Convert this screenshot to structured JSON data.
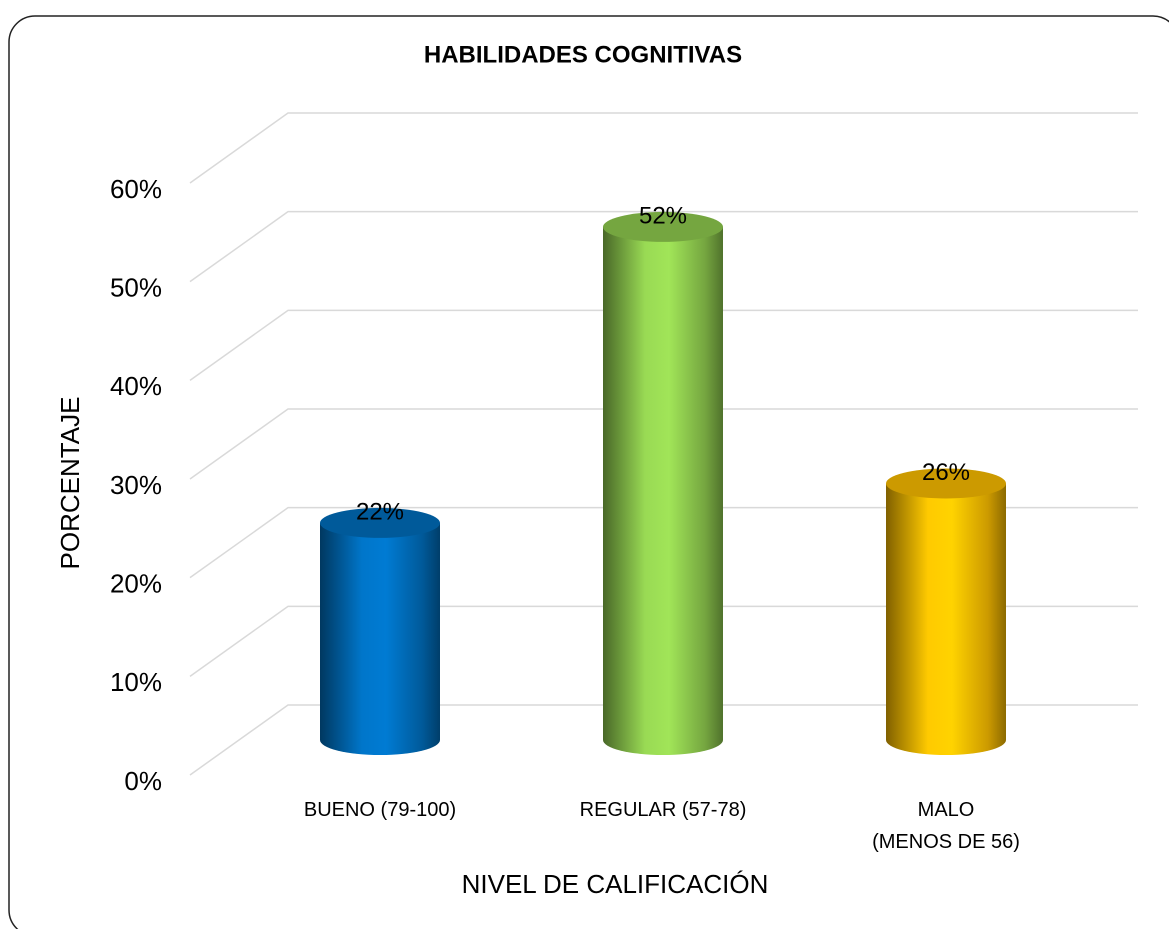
{
  "chart_data": {
    "type": "bar",
    "title": "HABILIDADES COGNITIVAS",
    "categories": [
      "BUENO (79-100)",
      "REGULAR (57-78)",
      "MALO\n(MENOS DE 56)"
    ],
    "values": [
      22,
      52,
      26
    ],
    "value_labels": [
      "22%",
      "52%",
      "26%"
    ],
    "colors": [
      "#0070c0",
      "#92d050",
      "#ffc000"
    ],
    "x_label": "NIVEL DE CALIFICACIÓN",
    "y_label": "PORCENTAJE",
    "ylim": [
      0,
      60
    ],
    "yticks": [
      {
        "value": 0,
        "label": "0%"
      },
      {
        "value": 10,
        "label": "10%"
      },
      {
        "value": 20,
        "label": "20%"
      },
      {
        "value": 30,
        "label": "30%"
      },
      {
        "value": 40,
        "label": "40%"
      },
      {
        "value": 50,
        "label": "50%"
      },
      {
        "value": 60,
        "label": "60%"
      }
    ],
    "grid": true
  }
}
